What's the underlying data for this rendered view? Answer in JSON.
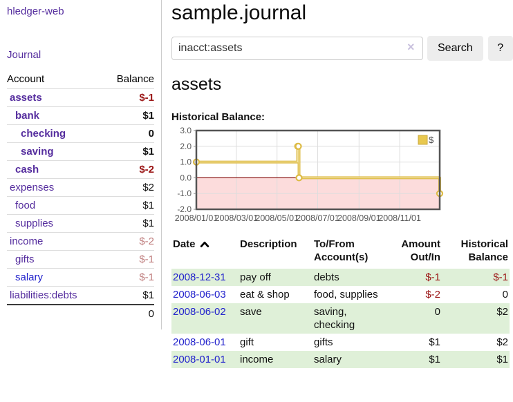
{
  "app": {
    "title": "hledger-web"
  },
  "sidebar": {
    "journal_link": "Journal",
    "accounts": {
      "header": {
        "account": "Account",
        "balance": "Balance"
      },
      "rows": [
        {
          "name": "assets",
          "balance": "$-1",
          "indent": 0,
          "bold": true,
          "name_style": "purple",
          "balance_style": "neg-strong"
        },
        {
          "name": "bank",
          "balance": "$1",
          "indent": 1,
          "bold": true,
          "name_style": "purple",
          "balance_style": "plain"
        },
        {
          "name": "checking",
          "balance": "0",
          "indent": 2,
          "bold": true,
          "name_style": "purple",
          "balance_style": "plain"
        },
        {
          "name": "saving",
          "balance": "$1",
          "indent": 2,
          "bold": true,
          "name_style": "purple",
          "balance_style": "plain"
        },
        {
          "name": "cash",
          "balance": "$-2",
          "indent": 1,
          "bold": true,
          "name_style": "purple",
          "balance_style": "neg-strong"
        },
        {
          "name": "expenses",
          "balance": "$2",
          "indent": 0,
          "bold": false,
          "name_style": "purple",
          "balance_style": "plain"
        },
        {
          "name": "food",
          "balance": "$1",
          "indent": 1,
          "bold": false,
          "name_style": "purple",
          "balance_style": "plain"
        },
        {
          "name": "supplies",
          "balance": "$1",
          "indent": 1,
          "bold": false,
          "name_style": "purple",
          "balance_style": "plain"
        },
        {
          "name": "income",
          "balance": "$-2",
          "indent": 0,
          "bold": false,
          "name_style": "purple",
          "balance_style": "neg-soft"
        },
        {
          "name": "gifts",
          "balance": "$-1",
          "indent": 1,
          "bold": false,
          "name_style": "purple",
          "balance_style": "neg-soft"
        },
        {
          "name": "salary",
          "balance": "$-1",
          "indent": 1,
          "bold": false,
          "name_style": "blue",
          "balance_style": "neg-soft"
        },
        {
          "name": "liabilities:debts",
          "balance": "$1",
          "indent": 0,
          "bold": false,
          "name_style": "purple",
          "balance_style": "plain"
        }
      ],
      "total": "0"
    }
  },
  "main": {
    "title": "sample.journal",
    "search": {
      "value": "inacct:assets",
      "clear_icon": "×",
      "search_button": "Search",
      "help_button": "?"
    },
    "account_title": "assets",
    "chart_title": "Historical Balance:",
    "register": {
      "headers": {
        "date": "Date",
        "description": "Description",
        "accounts": "To/From Account(s)",
        "amount": "Amount Out/In",
        "balance": "Historical Balance"
      },
      "rows": [
        {
          "date": "2008-12-31",
          "description": "pay off",
          "accounts": "debts",
          "amount": "$-1",
          "amount_style": "neg",
          "balance": "$-1",
          "balance_style": "neg",
          "zebra": "green"
        },
        {
          "date": "2008-06-03",
          "description": "eat & shop",
          "accounts": "food, supplies",
          "amount": "$-2",
          "amount_style": "neg",
          "balance": "0",
          "balance_style": "plain",
          "zebra": "white"
        },
        {
          "date": "2008-06-02",
          "description": "save",
          "accounts": "saving,\nchecking",
          "amount": "0",
          "amount_style": "plain",
          "balance": "$2",
          "balance_style": "plain",
          "zebra": "green"
        },
        {
          "date": "2008-06-01",
          "description": "gift",
          "accounts": "gifts",
          "amount": "$1",
          "amount_style": "plain",
          "balance": "$2",
          "balance_style": "plain",
          "zebra": "white"
        },
        {
          "date": "2008-01-01",
          "description": "income",
          "accounts": "salary",
          "amount": "$1",
          "amount_style": "plain",
          "balance": "$1",
          "balance_style": "plain",
          "zebra": "green"
        }
      ]
    }
  },
  "chart_data": {
    "type": "line",
    "title": "Historical Balance:",
    "step": true,
    "series": [
      {
        "name": "$",
        "color": "#ddbb45",
        "points": [
          [
            "2008-01-01",
            1
          ],
          [
            "2008-06-01",
            2
          ],
          [
            "2008-06-02",
            2
          ],
          [
            "2008-06-03",
            0
          ],
          [
            "2008-12-31",
            -1
          ]
        ]
      }
    ],
    "x_range": [
      "2008-01-01",
      "2008-12-31"
    ],
    "x_ticks": [
      "2008/01/01",
      "2008/03/01",
      "2008/05/01",
      "2008/07/01",
      "2008/09/01",
      "2008/11/01"
    ],
    "y_ticks": [
      "3.0",
      "2.0",
      "1.0",
      "0.0",
      "-1.0",
      "-2.0"
    ],
    "ylim": [
      -2,
      3
    ],
    "legend": {
      "label": "$",
      "position": "top-right"
    },
    "grid": true,
    "colors": {
      "line": "#ddbb45",
      "line_highlight": "#f3e3a5",
      "marker_fill": "#ffffff",
      "negative_region": "#fcdcdc",
      "zero_line": "#8b1513",
      "gridline": "#dddddd",
      "border": "#545454",
      "tick_text": "#555555",
      "legend_swatch": "#e8c84f"
    }
  }
}
